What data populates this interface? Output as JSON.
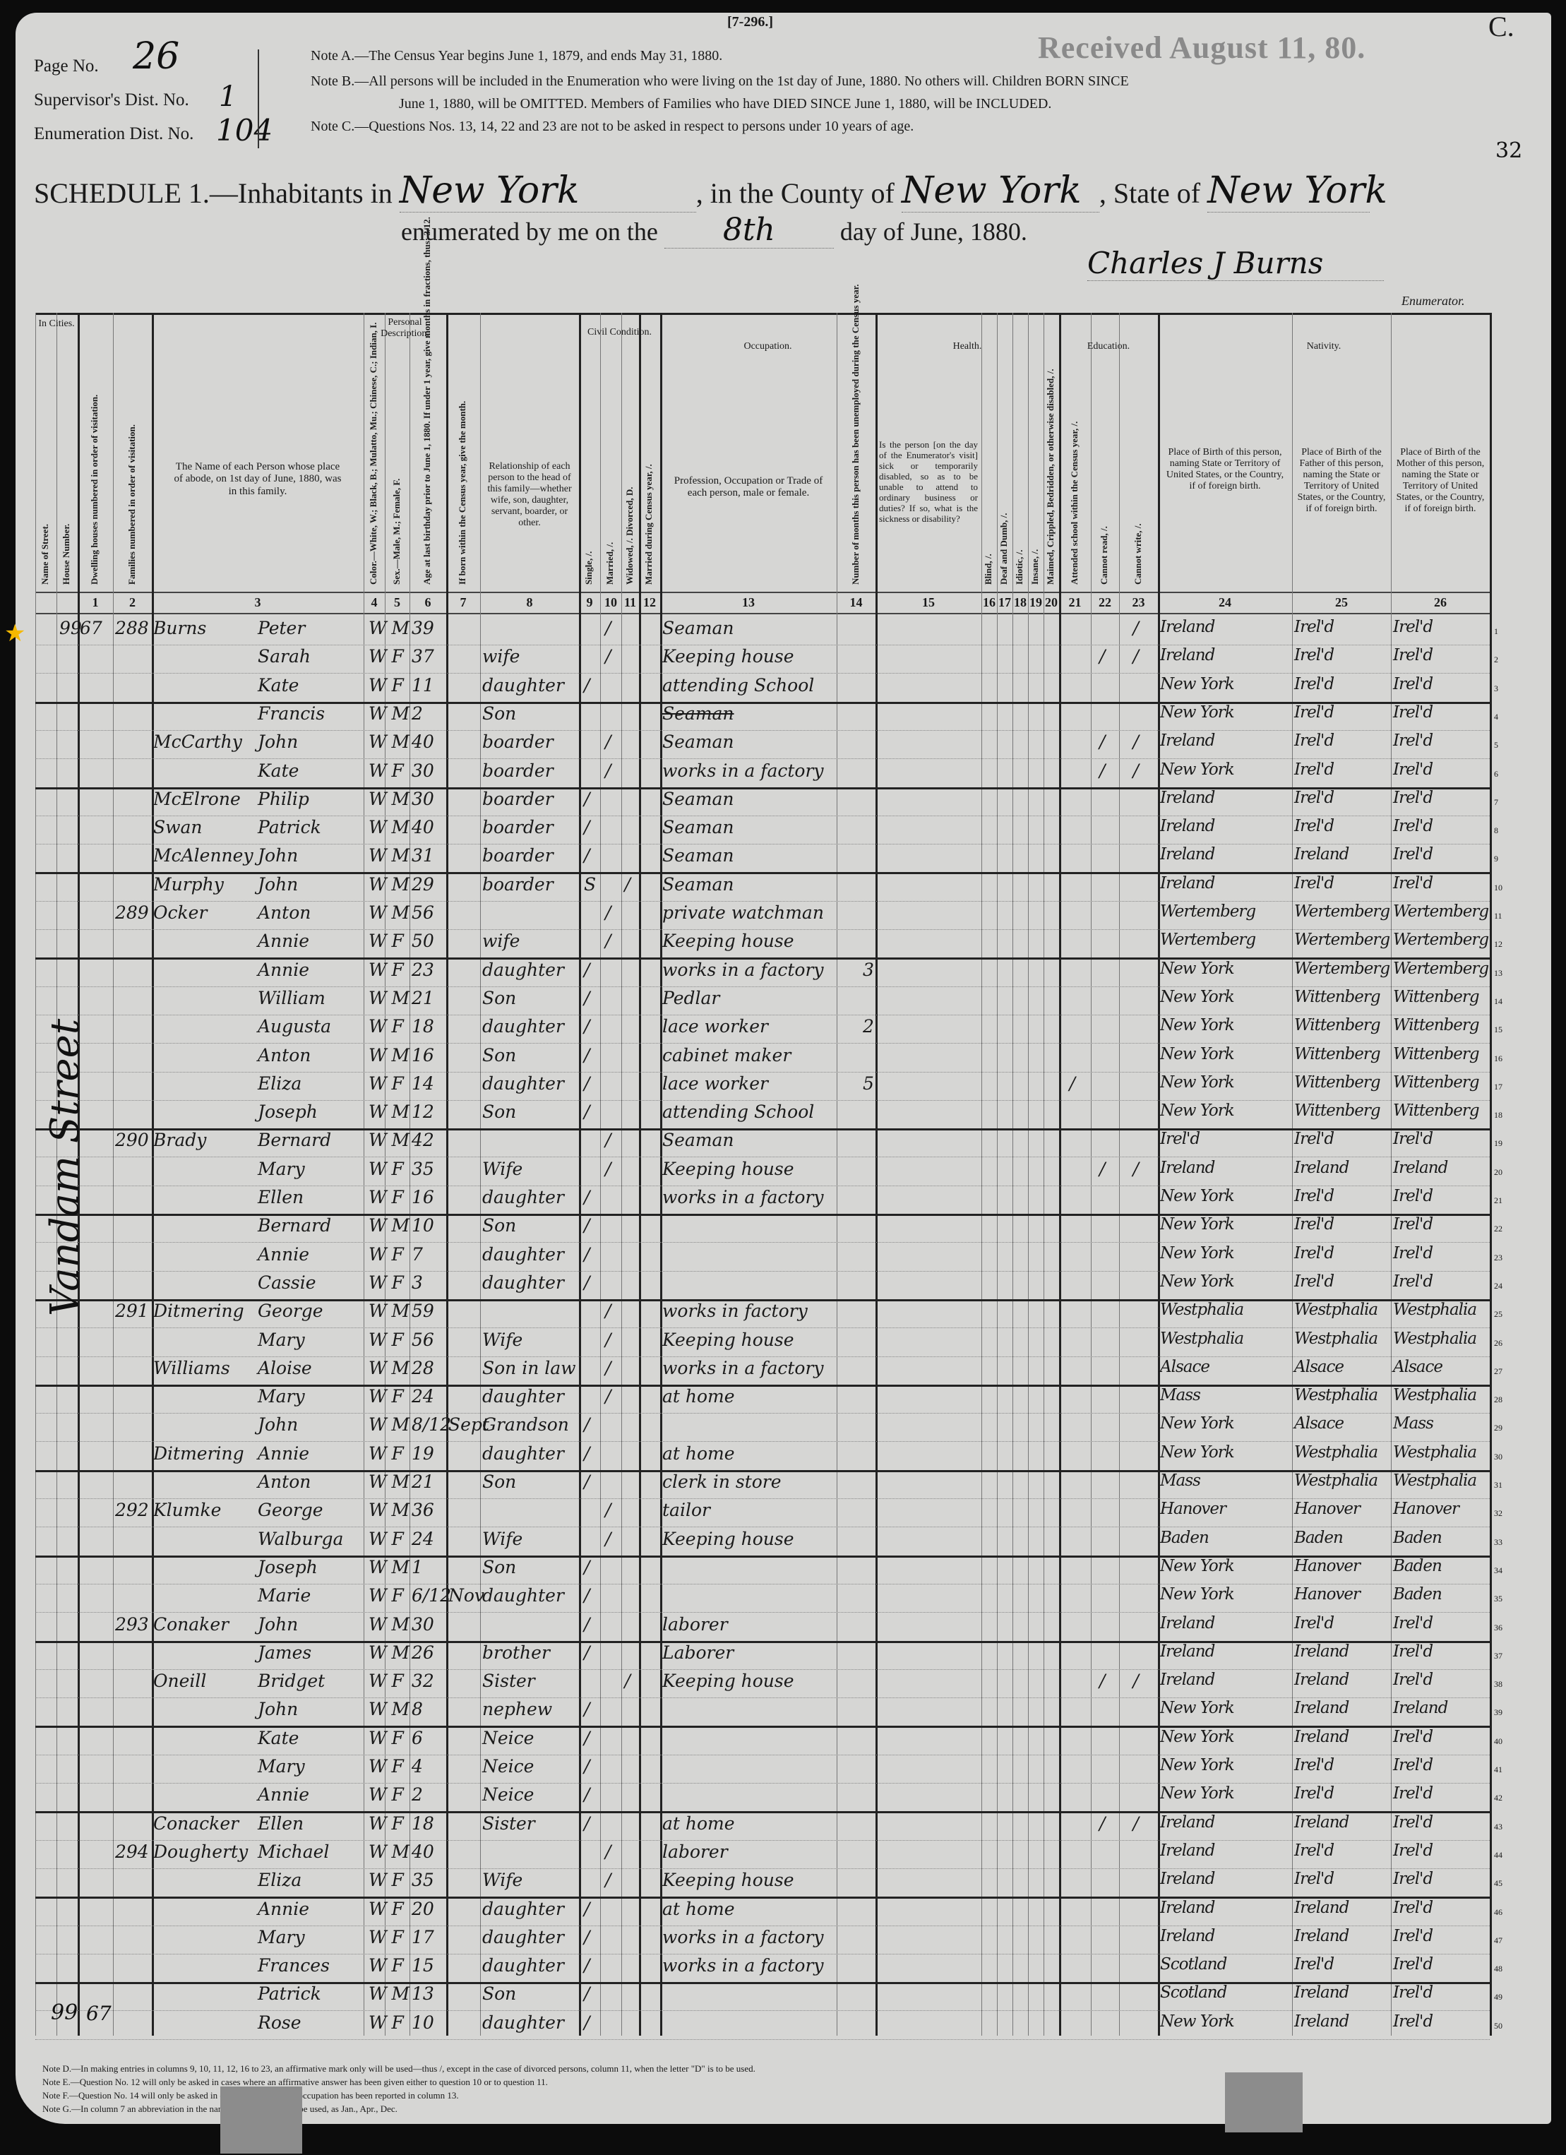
{
  "form_number": "[7-296.]",
  "corner_letter": "C.",
  "sheet_number": "32",
  "received_stamp": "Received August 11, 80.",
  "page_no": {
    "label": "Page No.",
    "value": "26"
  },
  "supervisor_dist": {
    "label": "Supervisor's Dist. No.",
    "value": "1"
  },
  "enumeration_dist": {
    "label": "Enumeration Dist. No.",
    "value": "104"
  },
  "notes": [
    "Note A.—The Census Year begins June 1, 1879, and ends May 31, 1880.",
    "Note B.—All persons will be included in the Enumeration who were living on the 1st day of June, 1880. No others will. Children BORN SINCE",
    "June 1, 1880, will be OMITTED. Members of Families who have DIED SINCE June 1, 1880, will be INCLUDED.",
    "Note C.—Questions Nos. 13, 14, 22 and 23 are not to be asked in respect to persons under 10 years of age."
  ],
  "schedule": {
    "title": "SCHEDULE 1.—Inhabitants in",
    "place": "New York",
    "county_label": ", in the County of",
    "county": "New York",
    "state_label": ", State of",
    "state": "New York",
    "enumerated_label": "enumerated by me on the",
    "day": "8th",
    "date_suffix": "day of June, 1880.",
    "enumerator_signature": "Charles J Burns",
    "enumerator_label": "Enumerator."
  },
  "headers": {
    "in_cities": "In Cities.",
    "street": "Name of Street.",
    "house": "House Number.",
    "c1": "Dwelling houses numbered in order of visitation.",
    "c2": "Families numbered in order of visitation.",
    "c3": "The Name of each Person whose place of abode, on 1st day of June, 1880, was in this family.",
    "personal": "Personal Description.",
    "c4": "Color.—White, W.; Black, B.; Mulatto, Mu.; Chinese, C.; Indian, I.",
    "c5": "Sex.—Male, M.; Female, F.",
    "c6": "Age at last birthday prior to June 1, 1880. If under 1 year, give months in fractions, thus: 3/12.",
    "c7": "If born within the Census year, give the month.",
    "c8": "Relationship of each person to the head of this family—whether wife, son, daughter, servant, boarder, or other.",
    "civil": "Civil Condition.",
    "c9": "Single, /.",
    "c10": "Married, /.",
    "c11": "Widowed, /. Divorced, D.",
    "c12": "Married during Census year, /.",
    "occupation": "Occupation.",
    "c13": "Profession, Occupation or Trade of each person, male or female.",
    "c14": "Number of months this person has been unemployed during the Census year.",
    "health": "Health.",
    "c15": "Is the person [on the day of the Enumerator's visit] sick or temporarily disabled, so as to be unable to attend to ordinary business or duties? If so, what is the sickness or disability?",
    "c16": "Blind, /.",
    "c17": "Deaf and Dumb, /.",
    "c18": "Idiotic, /.",
    "c19": "Insane, /.",
    "c20": "Maimed, Crippled, Bedridden, or otherwise disabled, /.",
    "education": "Education.",
    "c21": "Attended school within the Census year, /.",
    "c22": "Cannot read, /.",
    "c23": "Cannot write, /.",
    "nativity": "Nativity.",
    "c24": "Place of Birth of this person, naming State or Territory of United States, or the Country, if of foreign birth.",
    "c25": "Place of Birth of the Father of this person, naming the State or Territory of United States, or the Country, if of foreign birth.",
    "c26": "Place of Birth of the Mother of this person, naming the State or Territory of United States, or the Country, if of foreign birth."
  },
  "column_numbers": [
    "1",
    "2",
    "3",
    "4",
    "5",
    "6",
    "7",
    "8",
    "9",
    "10",
    "11",
    "12",
    "13",
    "14",
    "15",
    "16",
    "17",
    "18",
    "19",
    "20",
    "21",
    "22",
    "23",
    "24",
    "25",
    "26"
  ],
  "street_name": "Vandam Street",
  "bottom_house": "99",
  "bottom_dwelling": "67",
  "row_fields": [
    "house",
    "dwelling",
    "family",
    "surname",
    "given",
    "color",
    "sex",
    "age",
    "month",
    "relation",
    "single",
    "married",
    "widowed",
    "married_cy",
    "occupation",
    "unemployed",
    "attended",
    "cannot_read",
    "cannot_write",
    "birthplace",
    "father_birthplace",
    "mother_birthplace"
  ],
  "rows": [
    [
      "99",
      "67",
      "288",
      "Burns",
      "Peter",
      "W",
      "M",
      "39",
      "",
      "",
      "",
      "/",
      "",
      "",
      "Seaman",
      "",
      "",
      "",
      "/",
      "Ireland",
      "Irel'd",
      "Irel'd"
    ],
    [
      "",
      "",
      "",
      "",
      "Sarah",
      "W",
      "F",
      "37",
      "",
      "wife",
      "",
      "/",
      "",
      "",
      "Keeping house",
      "",
      "",
      "/",
      "/",
      "Ireland",
      "Irel'd",
      "Irel'd"
    ],
    [
      "",
      "",
      "",
      "",
      "Kate",
      "W",
      "F",
      "11",
      "",
      "daughter",
      "/",
      "",
      "",
      "",
      "attending School",
      "",
      "",
      "",
      "",
      "New York",
      "Irel'd",
      "Irel'd"
    ],
    [
      "",
      "",
      "",
      "",
      "Francis",
      "W",
      "M",
      "2",
      "",
      "Son",
      "",
      "",
      "",
      "",
      "~Seaman",
      "",
      "",
      "",
      "",
      "New York",
      "Irel'd",
      "Irel'd"
    ],
    [
      "",
      "",
      "",
      "McCarthy",
      "John",
      "W",
      "M",
      "40",
      "",
      "boarder",
      "",
      "/",
      "",
      "",
      "Seaman",
      "",
      "",
      "/",
      "/",
      "Ireland",
      "Irel'd",
      "Irel'd"
    ],
    [
      "",
      "",
      "",
      "",
      "Kate",
      "W",
      "F",
      "30",
      "",
      "boarder",
      "",
      "/",
      "",
      "",
      "works in a factory",
      "",
      "",
      "/",
      "/",
      "New York",
      "Irel'd",
      "Irel'd"
    ],
    [
      "",
      "",
      "",
      "McElrone",
      "Philip",
      "W",
      "M",
      "30",
      "",
      "boarder",
      "/",
      "",
      "",
      "",
      "Seaman",
      "",
      "",
      "",
      "",
      "Ireland",
      "Irel'd",
      "Irel'd"
    ],
    [
      "",
      "",
      "",
      "Swan",
      "Patrick",
      "W",
      "M",
      "40",
      "",
      "boarder",
      "/",
      "",
      "",
      "",
      "Seaman",
      "",
      "",
      "",
      "",
      "Ireland",
      "Irel'd",
      "Irel'd"
    ],
    [
      "",
      "",
      "",
      "McAlenney",
      "John",
      "W",
      "M",
      "31",
      "",
      "boarder",
      "/",
      "",
      "",
      "",
      "Seaman",
      "",
      "",
      "",
      "",
      "Ireland",
      "Ireland",
      "Irel'd"
    ],
    [
      "",
      "",
      "",
      "Murphy",
      "John",
      "W",
      "M",
      "29",
      "",
      "boarder",
      "S",
      "",
      "/",
      "",
      "Seaman",
      "",
      "",
      "",
      "",
      "Ireland",
      "Irel'd",
      "Irel'd"
    ],
    [
      "",
      "",
      "289",
      "Ocker",
      "Anton",
      "W",
      "M",
      "56",
      "",
      "",
      "",
      "/",
      "",
      "",
      "private watchman",
      "",
      "",
      "",
      "",
      "Wertemberg",
      "Wertemberg",
      "Wertemberg"
    ],
    [
      "",
      "",
      "",
      "",
      "Annie",
      "W",
      "F",
      "50",
      "",
      "wife",
      "",
      "/",
      "",
      "",
      "Keeping house",
      "",
      "",
      "",
      "",
      "Wertemberg",
      "Wertemberg",
      "Wertemberg"
    ],
    [
      "",
      "",
      "",
      "",
      "Annie",
      "W",
      "F",
      "23",
      "",
      "daughter",
      "/",
      "",
      "",
      "",
      "works in a factory",
      "3",
      "",
      "",
      "",
      "New York",
      "Wertemberg",
      "Wertemberg"
    ],
    [
      "",
      "",
      "",
      "",
      "William",
      "W",
      "M",
      "21",
      "",
      "Son",
      "/",
      "",
      "",
      "",
      "Pedlar",
      "",
      "",
      "",
      "",
      "New York",
      "Wittenberg",
      "Wittenberg"
    ],
    [
      "",
      "",
      "",
      "",
      "Augusta",
      "W",
      "F",
      "18",
      "",
      "daughter",
      "/",
      "",
      "",
      "",
      "lace worker",
      "2",
      "",
      "",
      "",
      "New York",
      "Wittenberg",
      "Wittenberg"
    ],
    [
      "",
      "",
      "",
      "",
      "Anton",
      "W",
      "M",
      "16",
      "",
      "Son",
      "/",
      "",
      "",
      "",
      "cabinet maker",
      "",
      "",
      "",
      "",
      "New York",
      "Wittenberg",
      "Wittenberg"
    ],
    [
      "",
      "",
      "",
      "",
      "Eliza",
      "W",
      "F",
      "14",
      "",
      "daughter",
      "/",
      "",
      "",
      "",
      "lace worker",
      "5",
      "/",
      "",
      "",
      "New York",
      "Wittenberg",
      "Wittenberg"
    ],
    [
      "",
      "",
      "",
      "",
      "Joseph",
      "W",
      "M",
      "12",
      "",
      "Son",
      "/",
      "",
      "",
      "",
      "attending School",
      "",
      "",
      "",
      "",
      "New York",
      "Wittenberg",
      "Wittenberg"
    ],
    [
      "",
      "",
      "290",
      "Brady",
      "Bernard",
      "W",
      "M",
      "42",
      "",
      "",
      "",
      "/",
      "",
      "",
      "Seaman",
      "",
      "",
      "",
      "",
      "Irel'd",
      "Irel'd",
      "Irel'd"
    ],
    [
      "",
      "",
      "",
      "",
      "Mary",
      "W",
      "F",
      "35",
      "",
      "Wife",
      "",
      "/",
      "",
      "",
      "Keeping house",
      "",
      "",
      "/",
      "/",
      "Ireland",
      "Ireland",
      "Ireland"
    ],
    [
      "",
      "",
      "",
      "",
      "Ellen",
      "W",
      "F",
      "16",
      "",
      "daughter",
      "/",
      "",
      "",
      "",
      "works in a factory",
      "",
      "",
      "",
      "",
      "New York",
      "Irel'd",
      "Irel'd"
    ],
    [
      "",
      "",
      "",
      "",
      "Bernard",
      "W",
      "M",
      "10",
      "",
      "Son",
      "/",
      "",
      "",
      "",
      "",
      "",
      "",
      "",
      "",
      "New York",
      "Irel'd",
      "Irel'd"
    ],
    [
      "",
      "",
      "",
      "",
      "Annie",
      "W",
      "F",
      "7",
      "",
      "daughter",
      "/",
      "",
      "",
      "",
      "",
      "",
      "",
      "",
      "",
      "New York",
      "Irel'd",
      "Irel'd"
    ],
    [
      "",
      "",
      "",
      "",
      "Cassie",
      "W",
      "F",
      "3",
      "",
      "daughter",
      "/",
      "",
      "",
      "",
      "",
      "",
      "",
      "",
      "",
      "New York",
      "Irel'd",
      "Irel'd"
    ],
    [
      "",
      "",
      "291",
      "Ditmering",
      "George",
      "W",
      "M",
      "59",
      "",
      "",
      "",
      "/",
      "",
      "",
      "works in factory",
      "",
      "",
      "",
      "",
      "Westphalia",
      "Westphalia",
      "Westphalia"
    ],
    [
      "",
      "",
      "",
      "",
      "Mary",
      "W",
      "F",
      "56",
      "",
      "Wife",
      "",
      "/",
      "",
      "",
      "Keeping house",
      "",
      "",
      "",
      "",
      "Westphalia",
      "Westphalia",
      "Westphalia"
    ],
    [
      "",
      "",
      "",
      "Williams",
      "Aloise",
      "W",
      "M",
      "28",
      "",
      "Son in law",
      "",
      "/",
      "",
      "",
      "works in a factory",
      "",
      "",
      "",
      "",
      "Alsace",
      "Alsace",
      "Alsace"
    ],
    [
      "",
      "",
      "",
      "",
      "Mary",
      "W",
      "F",
      "24",
      "",
      "daughter",
      "",
      "/",
      "",
      "",
      "at home",
      "",
      "",
      "",
      "",
      "Mass",
      "Westphalia",
      "Westphalia"
    ],
    [
      "",
      "",
      "",
      "",
      "John",
      "W",
      "M",
      "8/12",
      "Sept",
      "Grandson",
      "/",
      "",
      "",
      "",
      "",
      "",
      "",
      "",
      "",
      "New York",
      "Alsace",
      "Mass"
    ],
    [
      "",
      "",
      "",
      "Ditmering",
      "Annie",
      "W",
      "F",
      "19",
      "",
      "daughter",
      "/",
      "",
      "",
      "",
      "at home",
      "",
      "",
      "",
      "",
      "New York",
      "Westphalia",
      "Westphalia"
    ],
    [
      "",
      "",
      "",
      "",
      "Anton",
      "W",
      "M",
      "21",
      "",
      "Son",
      "/",
      "",
      "",
      "",
      "clerk in store",
      "",
      "",
      "",
      "",
      "Mass",
      "Westphalia",
      "Westphalia"
    ],
    [
      "",
      "",
      "292",
      "Klumke",
      "George",
      "W",
      "M",
      "36",
      "",
      "",
      "",
      "/",
      "",
      "",
      "tailor",
      "",
      "",
      "",
      "",
      "Hanover",
      "Hanover",
      "Hanover"
    ],
    [
      "",
      "",
      "",
      "",
      "Walburga",
      "W",
      "F",
      "24",
      "",
      "Wife",
      "",
      "/",
      "",
      "",
      "Keeping house",
      "",
      "",
      "",
      "",
      "Baden",
      "Baden",
      "Baden"
    ],
    [
      "",
      "",
      "",
      "",
      "Joseph",
      "W",
      "M",
      "1",
      "",
      "Son",
      "/",
      "",
      "",
      "",
      "",
      "",
      "",
      "",
      "",
      "New York",
      "Hanover",
      "Baden"
    ],
    [
      "",
      "",
      "",
      "",
      "Marie",
      "W",
      "F",
      "6/12",
      "Nov",
      "daughter",
      "/",
      "",
      "",
      "",
      "",
      "",
      "",
      "",
      "",
      "New York",
      "Hanover",
      "Baden"
    ],
    [
      "",
      "",
      "293",
      "Conaker",
      "John",
      "W",
      "M",
      "30",
      "",
      "",
      "/",
      "",
      "",
      "",
      "laborer",
      "",
      "",
      "",
      "",
      "Ireland",
      "Irel'd",
      "Irel'd"
    ],
    [
      "",
      "",
      "",
      "",
      "James",
      "W",
      "M",
      "26",
      "",
      "brother",
      "/",
      "",
      "",
      "",
      "Laborer",
      "",
      "",
      "",
      "",
      "Ireland",
      "Ireland",
      "Irel'd"
    ],
    [
      "",
      "",
      "",
      "Oneill",
      "Bridget",
      "W",
      "F",
      "32",
      "",
      "Sister",
      "",
      "",
      "/",
      "",
      "Keeping house",
      "",
      "",
      "/",
      "/",
      "Ireland",
      "Ireland",
      "Irel'd"
    ],
    [
      "",
      "",
      "",
      "",
      "John",
      "W",
      "M",
      "8",
      "",
      "nephew",
      "/",
      "",
      "",
      "",
      "",
      "",
      "",
      "",
      "",
      "New York",
      "Ireland",
      "Ireland"
    ],
    [
      "",
      "",
      "",
      "",
      "Kate",
      "W",
      "F",
      "6",
      "",
      "Neice",
      "/",
      "",
      "",
      "",
      "",
      "",
      "",
      "",
      "",
      "New York",
      "Ireland",
      "Irel'd"
    ],
    [
      "",
      "",
      "",
      "",
      "Mary",
      "W",
      "F",
      "4",
      "",
      "Neice",
      "/",
      "",
      "",
      "",
      "",
      "",
      "",
      "",
      "",
      "New York",
      "Irel'd",
      "Irel'd"
    ],
    [
      "",
      "",
      "",
      "",
      "Annie",
      "W",
      "F",
      "2",
      "",
      "Neice",
      "/",
      "",
      "",
      "",
      "",
      "",
      "",
      "",
      "",
      "New York",
      "Irel'd",
      "Irel'd"
    ],
    [
      "",
      "",
      "",
      "Conacker",
      "Ellen",
      "W",
      "F",
      "18",
      "",
      "Sister",
      "/",
      "",
      "",
      "",
      "at home",
      "",
      "",
      "/",
      "/",
      "Ireland",
      "Ireland",
      "Irel'd"
    ],
    [
      "",
      "",
      "294",
      "Dougherty",
      "Michael",
      "W",
      "M",
      "40",
      "",
      "",
      "",
      "/",
      "",
      "",
      "laborer",
      "",
      "",
      "",
      "",
      "Ireland",
      "Irel'd",
      "Irel'd"
    ],
    [
      "",
      "",
      "",
      "",
      "Eliza",
      "W",
      "F",
      "35",
      "",
      "Wife",
      "",
      "/",
      "",
      "",
      "Keeping house",
      "",
      "",
      "",
      "",
      "Ireland",
      "Irel'd",
      "Irel'd"
    ],
    [
      "",
      "",
      "",
      "",
      "Annie",
      "W",
      "F",
      "20",
      "",
      "daughter",
      "/",
      "",
      "",
      "",
      "at home",
      "",
      "",
      "",
      "",
      "Ireland",
      "Ireland",
      "Irel'd"
    ],
    [
      "",
      "",
      "",
      "",
      "Mary",
      "W",
      "F",
      "17",
      "",
      "daughter",
      "/",
      "",
      "",
      "",
      "works in a factory",
      "",
      "",
      "",
      "",
      "Ireland",
      "Ireland",
      "Irel'd"
    ],
    [
      "",
      "",
      "",
      "",
      "Frances",
      "W",
      "F",
      "15",
      "",
      "daughter",
      "/",
      "",
      "",
      "",
      "works in a factory",
      "",
      "",
      "",
      "",
      "Scotland",
      "Irel'd",
      "Irel'd"
    ],
    [
      "",
      "",
      "",
      "",
      "Patrick",
      "W",
      "M",
      "13",
      "",
      "Son",
      "/",
      "",
      "",
      "",
      "",
      "",
      "",
      "",
      "",
      "Scotland",
      "Ireland",
      "Irel'd"
    ],
    [
      "",
      "",
      "",
      "",
      "Rose",
      "W",
      "F",
      "10",
      "",
      "daughter",
      "/",
      "",
      "",
      "",
      "",
      "",
      "",
      "",
      "",
      "New York",
      "Ireland",
      "Irel'd"
    ]
  ],
  "family_breaks_after": [
    3,
    6,
    9,
    12,
    18,
    21,
    24,
    27,
    30,
    33,
    36,
    39,
    42,
    45,
    48
  ],
  "footnotes": [
    "Note D.—In making entries in columns 9, 10, 11, 12, 16 to 23, an affirmative mark only will be used—thus /, except in the case of divorced persons, column 11, when the letter \"D\" is to be used.",
    "Note E.—Question No. 12 will only be asked in cases where an affirmative answer has been given either to question 10 or to question 11.",
    "Note F.—Question No. 14 will only be asked in cases when a gainful occupation has been reported in column 13.",
    "Note G.—In column 7 an abbreviation in the name of the month may be used, as Jan., Apr., Dec."
  ],
  "highlight_color": "#f5b800"
}
